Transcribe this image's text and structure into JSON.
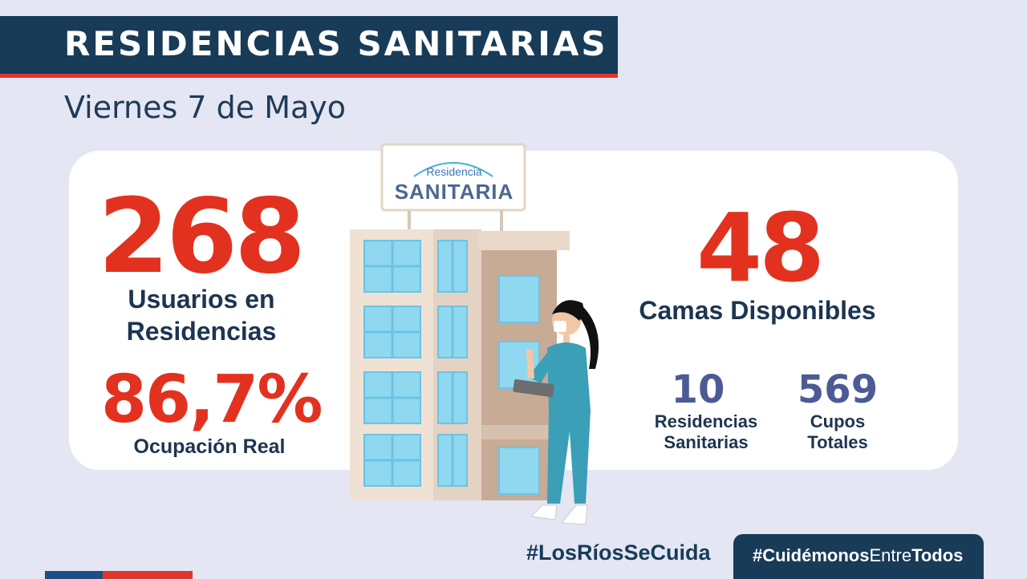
{
  "header": {
    "title": "RESIDENCIAS SANITARIAS",
    "date": "Viernes 7 de Mayo"
  },
  "sign": {
    "line1": "Residencia",
    "line2": "SANITARIA"
  },
  "stats": {
    "users_value": "268",
    "users_label_line1": "Usuarios en",
    "users_label_line2": "Residencias",
    "occupancy_value": "86,7%",
    "occupancy_label": "Ocupación Real",
    "beds_value": "48",
    "beds_label": "Camas Disponibles",
    "residences_value": "10",
    "residences_label_line1": "Residencias",
    "residences_label_line2": "Sanitarias",
    "slots_value": "569",
    "slots_label_line1": "Cupos",
    "slots_label_line2": "Totales"
  },
  "footer": {
    "hashtag_left": "#LosRíosSeCuida",
    "hashtag_right_a": "#Cuidémonos",
    "hashtag_right_b": "Entre",
    "hashtag_right_c": "Todos"
  },
  "colors": {
    "navy": "#183b57",
    "red": "#e2321f",
    "slate": "#4c5b94",
    "background": "#e4e6f4"
  }
}
